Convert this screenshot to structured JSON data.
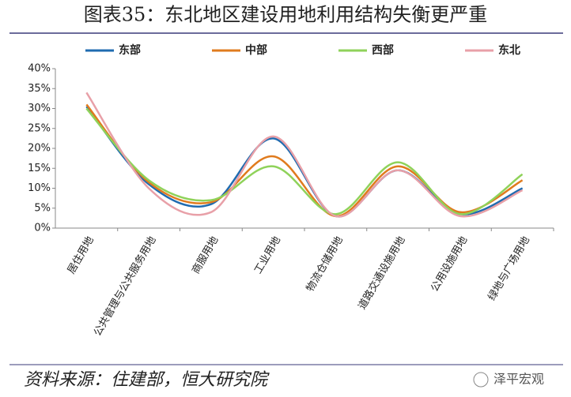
{
  "chart_data": {
    "type": "line",
    "title": "图表35：东北地区建设用地利用结构失衡更严重",
    "categories": [
      "居住用地",
      "公共管理与公共服务用地",
      "商服用地",
      "工业用地",
      "物流仓储用地",
      "道路交通设施用地",
      "公用设施用地",
      "绿地与广场用地"
    ],
    "series": [
      {
        "name": "东部",
        "color": "#1f6bb0",
        "values": [
          30.5,
          11,
          6,
          22.5,
          3,
          14.5,
          3.5,
          10
        ]
      },
      {
        "name": "中部",
        "color": "#e07b1e",
        "values": [
          31,
          11.5,
          6.5,
          18,
          3,
          15.5,
          4,
          12
        ]
      },
      {
        "name": "西部",
        "color": "#8fd25a",
        "values": [
          30,
          12,
          7,
          15.5,
          3.5,
          16.5,
          3.5,
          13.5
        ]
      },
      {
        "name": "东北",
        "color": "#e8a0a8",
        "values": [
          34,
          10,
          4,
          23,
          3,
          14.5,
          3,
          9.5
        ]
      }
    ],
    "ylim": [
      0,
      40
    ],
    "yticks": [
      {
        "value": 0,
        "label": "0%"
      },
      {
        "value": 5,
        "label": "5%"
      },
      {
        "value": 10,
        "label": "10%"
      },
      {
        "value": 15,
        "label": "15%"
      },
      {
        "value": 20,
        "label": "20%"
      },
      {
        "value": 25,
        "label": "25%"
      },
      {
        "value": 30,
        "label": "30%"
      },
      {
        "value": 35,
        "label": "35%"
      },
      {
        "value": 40,
        "label": "40%"
      }
    ],
    "smooth": true,
    "source": "资料来源：住建部，恒大研究院",
    "watermark": "泽平宏观"
  }
}
